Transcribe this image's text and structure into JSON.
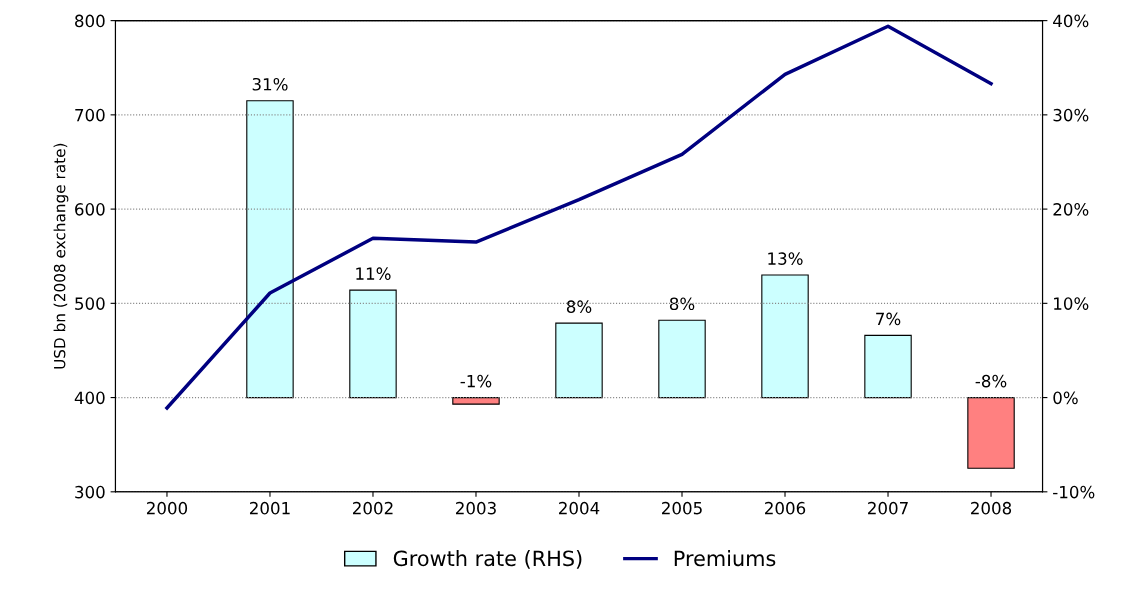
{
  "chart_data": {
    "type": "bar",
    "ylabel": "USD bn (2008 exchange rate)",
    "categories": [
      "2000",
      "2001",
      "2002",
      "2003",
      "2004",
      "2005",
      "2006",
      "2007",
      "2008"
    ],
    "series": [
      {
        "name": "Growth rate (RHS)",
        "axis": "y2",
        "colors": [
          "#ccffff",
          "#ccffff",
          "#ccffff",
          "#ff8080",
          "#ccffff",
          "#ccffff",
          "#ccffff",
          "#ccffff",
          "#ff8080"
        ],
        "values": [
          null,
          31.5,
          11.4,
          -0.7,
          7.9,
          8.2,
          13.0,
          6.6,
          -7.5
        ],
        "value_labels": [
          null,
          "31%",
          "11%",
          "-1%",
          "8%",
          "8%",
          "13%",
          "7%",
          "-8%"
        ]
      },
      {
        "name": "Premiums",
        "type": "line",
        "color": "#000080",
        "values": [
          389,
          511,
          569,
          565,
          610,
          658,
          743,
          794,
          733
        ]
      }
    ],
    "ylim": [
      300,
      800
    ],
    "yticks": [
      300,
      400,
      500,
      600,
      700,
      800
    ],
    "y2lim": [
      -10,
      40
    ],
    "y2ticks": [
      {
        "value": -10,
        "label": "-10%"
      },
      {
        "value": 0,
        "label": "0%"
      },
      {
        "value": 10,
        "label": "10%"
      },
      {
        "value": 20,
        "label": "20%"
      },
      {
        "value": 30,
        "label": "30%"
      },
      {
        "value": 40,
        "label": "40%"
      }
    ],
    "grid": "y",
    "legend": "bottom"
  }
}
